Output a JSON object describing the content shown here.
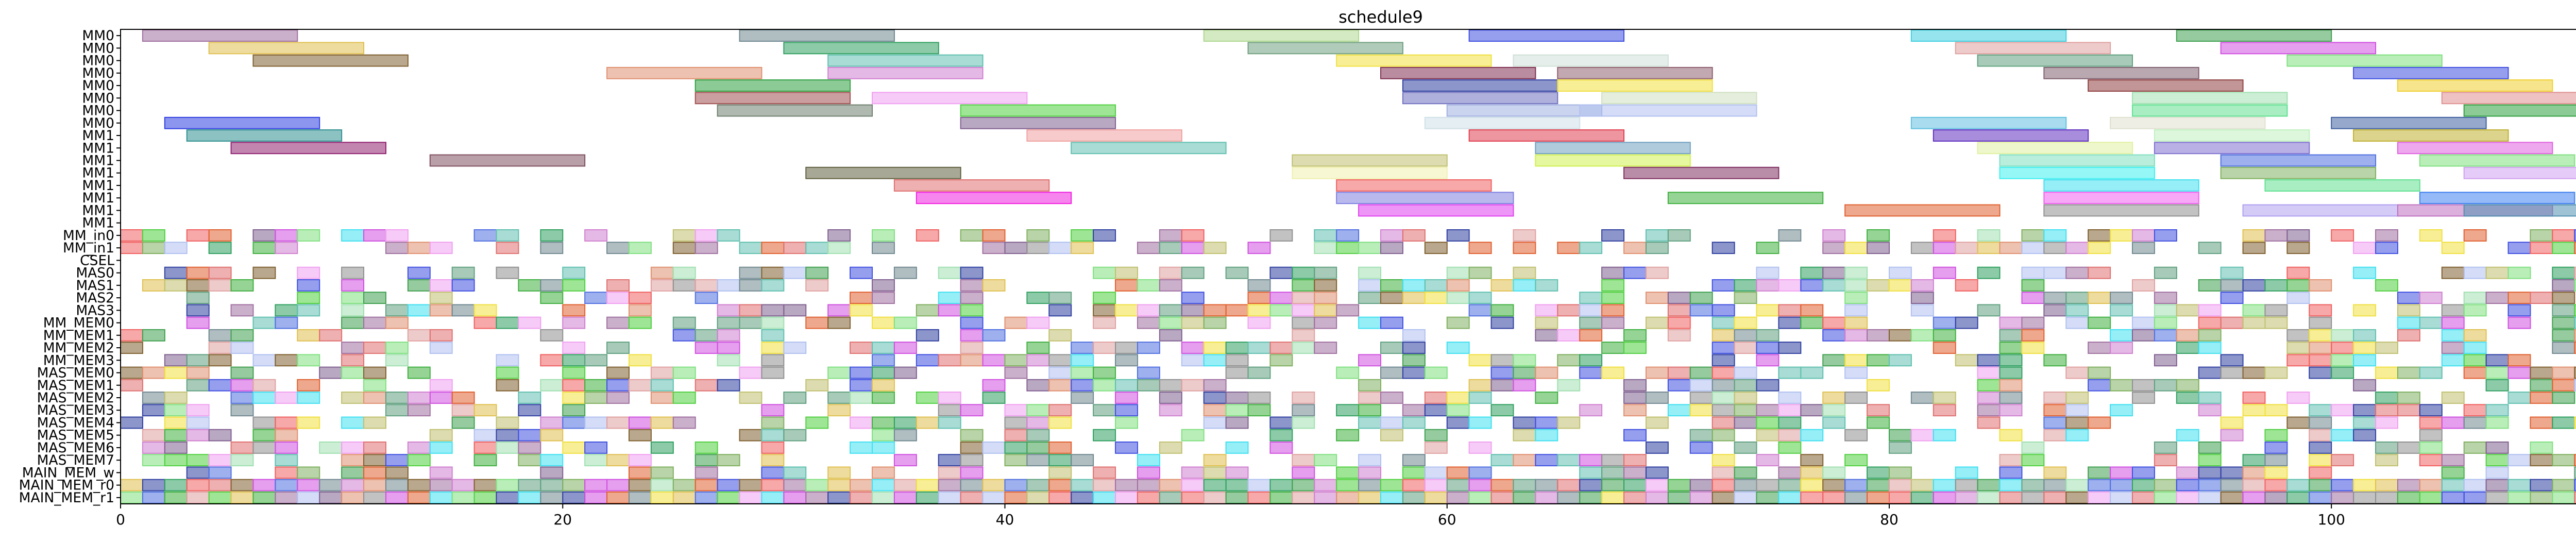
{
  "chart_data": {
    "type": "gantt",
    "title": "schedule9",
    "xlim": [
      0,
      114
    ],
    "xticks": [
      0,
      20,
      40,
      60,
      80,
      100
    ],
    "grid": false,
    "legend": "none",
    "rows": [
      "MM0",
      "MM0",
      "MM0",
      "MM0",
      "MM0",
      "MM0",
      "MM0",
      "MM0",
      "MM1",
      "MM1",
      "MM1",
      "MM1",
      "MM1",
      "MM1",
      "MM1",
      "MM1",
      "MM_in0",
      "MM_in1",
      "CSEL",
      "MAS0",
      "MAS1",
      "MAS2",
      "MAS3",
      "MM_MEM0",
      "MM_MEM1",
      "MM_MEM2",
      "MM_MEM3",
      "MAS_MEM0",
      "MAS_MEM1",
      "MAS_MEM2",
      "MAS_MEM3",
      "MAS_MEM4",
      "MAS_MEM5",
      "MAS_MEM6",
      "MAS_MEM7",
      "MAIN_MEM_w",
      "MAIN_MEM_r0",
      "MAIN_MEM_r1"
    ],
    "bars": [
      [
        0,
        1,
        8,
        "#a070a0"
      ],
      [
        0,
        28,
        35,
        "#708890"
      ],
      [
        0,
        49,
        56,
        "#b0d890"
      ],
      [
        0,
        61,
        68,
        "#4050e0"
      ],
      [
        0,
        81,
        88,
        "#40d0e0"
      ],
      [
        0,
        93,
        100,
        "#40a050"
      ],
      [
        1,
        4,
        11,
        "#e0c050"
      ],
      [
        1,
        30,
        37,
        "#30a060"
      ],
      [
        1,
        51,
        58,
        "#70a080"
      ],
      [
        1,
        83,
        90,
        "#e0a0a0"
      ],
      [
        1,
        95,
        102,
        "#d050e0"
      ],
      [
        2,
        6,
        13,
        "#806030"
      ],
      [
        2,
        32,
        39,
        "#60c0b0"
      ],
      [
        2,
        55,
        62,
        "#f0e040"
      ],
      [
        2,
        63,
        70,
        "#d0e0d8"
      ],
      [
        2,
        84,
        91,
        "#60a080"
      ],
      [
        2,
        98,
        105,
        "#80e080"
      ],
      [
        3,
        22,
        29,
        "#e09070"
      ],
      [
        3,
        32,
        39,
        "#d080d0"
      ],
      [
        3,
        57,
        64,
        "#803050"
      ],
      [
        3,
        65,
        72,
        "#906070"
      ],
      [
        3,
        87,
        94,
        "#806070"
      ],
      [
        3,
        101,
        108,
        "#4050e0"
      ],
      [
        4,
        26,
        33,
        "#30a040"
      ],
      [
        4,
        58,
        65,
        "#3040a0"
      ],
      [
        4,
        65,
        72,
        "#f0e040"
      ],
      [
        4,
        89,
        96,
        "#904040"
      ],
      [
        4,
        103,
        110,
        "#f0d030"
      ],
      [
        5,
        26,
        33,
        "#a05050"
      ],
      [
        5,
        34,
        41,
        "#f0a0f0"
      ],
      [
        5,
        58,
        65,
        "#7070c0"
      ],
      [
        5,
        67,
        74,
        "#d0e0c0"
      ],
      [
        5,
        91,
        98,
        "#a0e0b0"
      ],
      [
        5,
        105,
        112,
        "#e09090"
      ],
      [
        6,
        27,
        34,
        "#708070"
      ],
      [
        6,
        38,
        45,
        "#50d040"
      ],
      [
        6,
        60,
        67,
        "#a0b0e0"
      ],
      [
        6,
        66,
        74,
        "#b0c0f0"
      ],
      [
        6,
        91,
        98,
        "#60e090"
      ],
      [
        6,
        106,
        113,
        "#30a040"
      ],
      [
        7,
        2,
        9,
        "#3040e0"
      ],
      [
        7,
        38,
        45,
        "#806090"
      ],
      [
        7,
        59,
        66,
        "#d0e0e8"
      ],
      [
        7,
        81,
        88,
        "#60c0e0"
      ],
      [
        7,
        90,
        97,
        "#e0e0d0"
      ],
      [
        7,
        100,
        107,
        "#4060a0"
      ],
      [
        8,
        3,
        10,
        "#309090"
      ],
      [
        8,
        41,
        48,
        "#f0a0a0"
      ],
      [
        8,
        61,
        68,
        "#e04050"
      ],
      [
        8,
        82,
        89,
        "#6030c0"
      ],
      [
        8,
        92,
        99,
        "#c0f0c0"
      ],
      [
        8,
        101,
        108,
        "#c0b030"
      ],
      [
        9,
        5,
        12,
        "#902070"
      ],
      [
        9,
        43,
        50,
        "#60c0b0"
      ],
      [
        9,
        64,
        71,
        "#70a0c0"
      ],
      [
        9,
        84,
        91,
        "#e0f0a0"
      ],
      [
        9,
        92,
        99,
        "#8070d0"
      ],
      [
        9,
        103,
        110,
        "#e060e0"
      ],
      [
        10,
        14,
        21,
        "#805060"
      ],
      [
        10,
        53,
        60,
        "#c0c070"
      ],
      [
        10,
        64,
        71,
        "#d0f050"
      ],
      [
        10,
        85,
        92,
        "#80e0c0"
      ],
      [
        10,
        95,
        102,
        "#5070e0"
      ],
      [
        10,
        104,
        111,
        "#80e080"
      ],
      [
        11,
        31,
        38,
        "#606040"
      ],
      [
        11,
        53,
        60,
        "#f0f0b0"
      ],
      [
        11,
        68,
        75,
        "#803060"
      ],
      [
        11,
        85,
        92,
        "#40f0f0"
      ],
      [
        11,
        95,
        102,
        "#80b060"
      ],
      [
        11,
        106,
        113,
        "#d0a0f0"
      ],
      [
        12,
        35,
        42,
        "#e07070"
      ],
      [
        12,
        55,
        62,
        "#f06060"
      ],
      [
        12,
        87,
        94,
        "#40e0f0"
      ],
      [
        12,
        97,
        104,
        "#60e090"
      ],
      [
        13,
        36,
        43,
        "#f020e0"
      ],
      [
        13,
        55,
        63,
        "#8080e0"
      ],
      [
        13,
        70,
        77,
        "#40b040"
      ],
      [
        13,
        87,
        94,
        "#f060f0"
      ],
      [
        13,
        104,
        111,
        "#4080f0"
      ],
      [
        14,
        56,
        63,
        "#e040f0"
      ],
      [
        14,
        78,
        85,
        "#e06030"
      ],
      [
        14,
        87,
        94,
        "#909090"
      ],
      [
        14,
        96,
        103,
        "#b0a0f0"
      ],
      [
        14,
        103,
        110,
        "#c070c0"
      ],
      [
        14,
        106,
        114,
        "#5090b0"
      ]
    ]
  }
}
